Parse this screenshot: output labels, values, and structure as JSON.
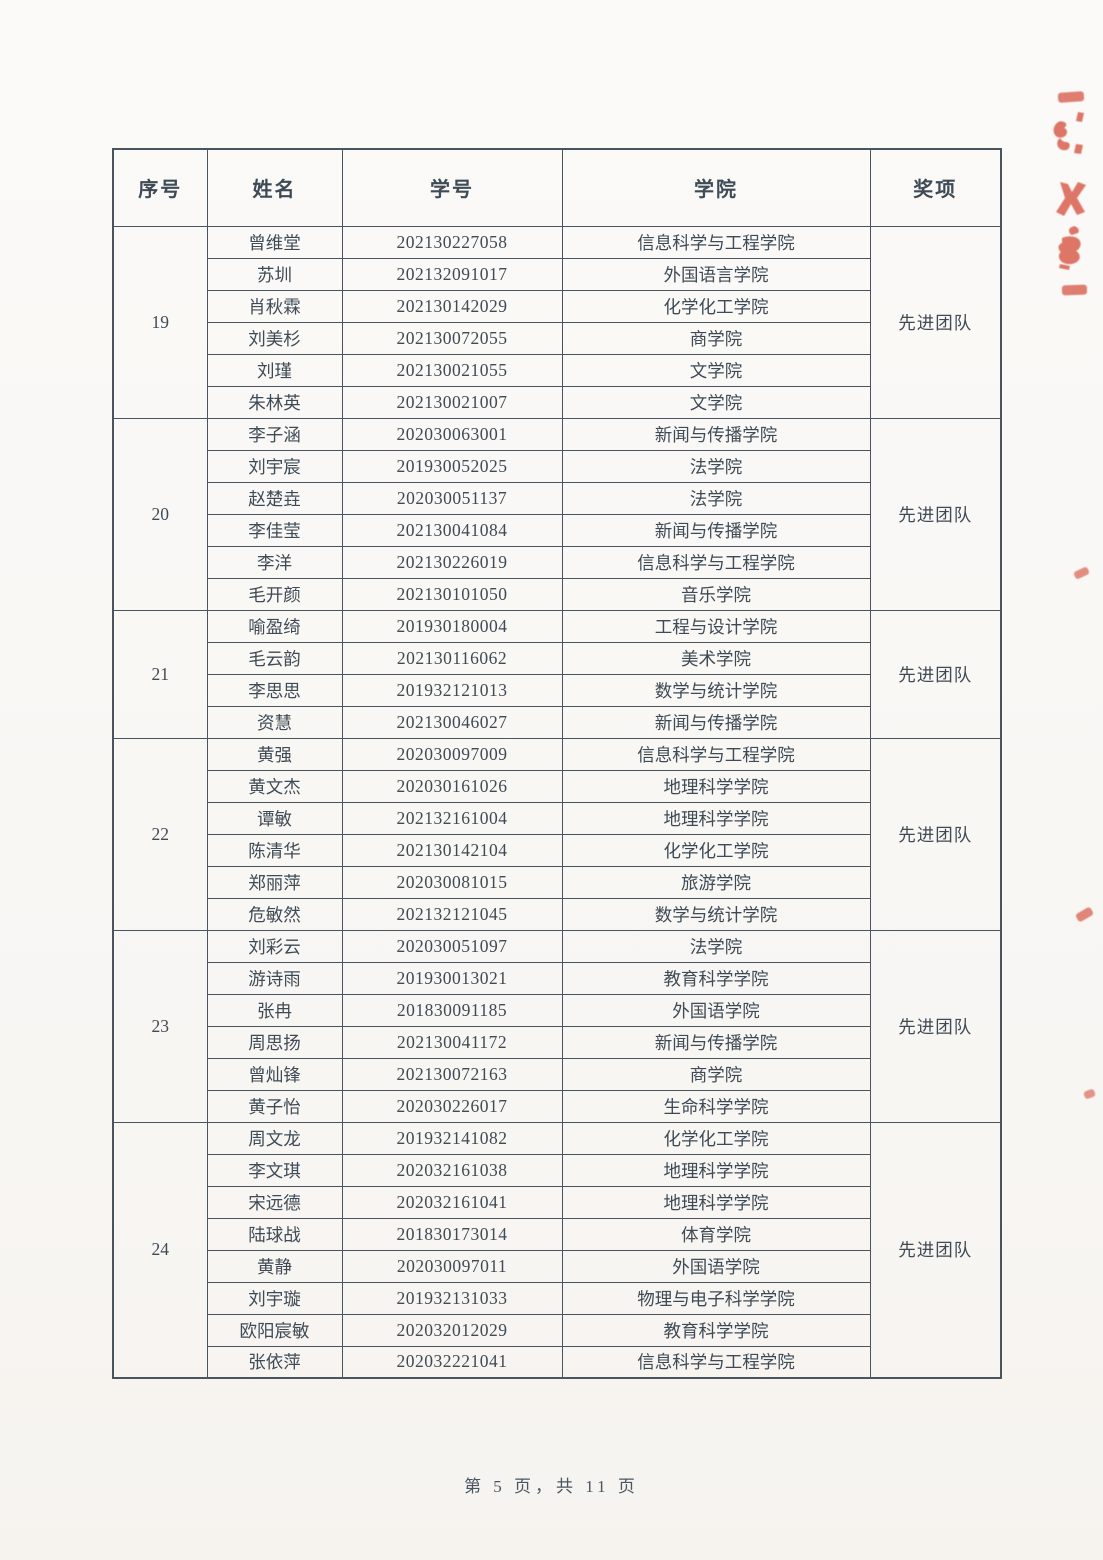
{
  "document": {
    "kind": "scanned award list page",
    "footer": {
      "page_text": "第 5 页，共 11 页"
    }
  },
  "colors": {
    "ink": "#3e4a55",
    "table_line": "#4a545e",
    "paper": "#f9f8f5",
    "stamp_red": "#d8604f"
  },
  "table": {
    "headers": [
      "序号",
      "姓名",
      "学号",
      "学院",
      "奖项"
    ],
    "groups": [
      {
        "id": "19",
        "award": "先进团队",
        "members": [
          {
            "name": "曾维堂",
            "student_id": "202130227058",
            "college": "信息科学与工程学院"
          },
          {
            "name": "苏圳",
            "student_id": "202132091017",
            "college": "外国语言学院"
          },
          {
            "name": "肖秋霖",
            "student_id": "202130142029",
            "college": "化学化工学院"
          },
          {
            "name": "刘美杉",
            "student_id": "202130072055",
            "college": "商学院"
          },
          {
            "name": "刘瑾",
            "student_id": "202130021055",
            "college": "文学院"
          },
          {
            "name": "朱林英",
            "student_id": "202130021007",
            "college": "文学院"
          }
        ]
      },
      {
        "id": "20",
        "award": "先进团队",
        "members": [
          {
            "name": "李子涵",
            "student_id": "202030063001",
            "college": "新闻与传播学院"
          },
          {
            "name": "刘宇宸",
            "student_id": "201930052025",
            "college": "法学院"
          },
          {
            "name": "赵楚垚",
            "student_id": "202030051137",
            "college": "法学院"
          },
          {
            "name": "李佳莹",
            "student_id": "202130041084",
            "college": "新闻与传播学院"
          },
          {
            "name": "李洋",
            "student_id": "202130226019",
            "college": "信息科学与工程学院"
          },
          {
            "name": "毛开颜",
            "student_id": "202130101050",
            "college": "音乐学院"
          }
        ]
      },
      {
        "id": "21",
        "award": "先进团队",
        "members": [
          {
            "name": "喻盈绮",
            "student_id": "201930180004",
            "college": "工程与设计学院"
          },
          {
            "name": "毛云韵",
            "student_id": "202130116062",
            "college": "美术学院"
          },
          {
            "name": "李思思",
            "student_id": "201932121013",
            "college": "数学与统计学院"
          },
          {
            "name": "资慧",
            "student_id": "202130046027",
            "college": "新闻与传播学院"
          }
        ]
      },
      {
        "id": "22",
        "award": "先进团队",
        "members": [
          {
            "name": "黄强",
            "student_id": "202030097009",
            "college": "信息科学与工程学院"
          },
          {
            "name": "黄文杰",
            "student_id": "202030161026",
            "college": "地理科学学院"
          },
          {
            "name": "谭敏",
            "student_id": "202132161004",
            "college": "地理科学学院"
          },
          {
            "name": "陈清华",
            "student_id": "202130142104",
            "college": "化学化工学院"
          },
          {
            "name": "郑丽萍",
            "student_id": "202030081015",
            "college": "旅游学院"
          },
          {
            "name": "危敏然",
            "student_id": "202132121045",
            "college": "数学与统计学院"
          }
        ]
      },
      {
        "id": "23",
        "award": "先进团队",
        "members": [
          {
            "name": "刘彩云",
            "student_id": "202030051097",
            "college": "法学院"
          },
          {
            "name": "游诗雨",
            "student_id": "201930013021",
            "college": "教育科学学院"
          },
          {
            "name": "张冉",
            "student_id": "201830091185",
            "college": "外国语学院"
          },
          {
            "name": "周思扬",
            "student_id": "202130041172",
            "college": "新闻与传播学院"
          },
          {
            "name": "曾灿锋",
            "student_id": "202130072163",
            "college": "商学院"
          },
          {
            "name": "黄子怡",
            "student_id": "202030226017",
            "college": "生命科学学院"
          }
        ]
      },
      {
        "id": "24",
        "award": "先进团队",
        "members": [
          {
            "name": "周文龙",
            "student_id": "201932141082",
            "college": "化学化工学院"
          },
          {
            "name": "李文琪",
            "student_id": "202032161038",
            "college": "地理科学学院"
          },
          {
            "name": "宋远德",
            "student_id": "202032161041",
            "college": "地理科学学院"
          },
          {
            "name": "陆球战",
            "student_id": "201830173014",
            "college": "体育学院"
          },
          {
            "name": "黄静",
            "student_id": "202030097011",
            "college": "外国语学院"
          },
          {
            "name": "刘宇璇",
            "student_id": "201932131033",
            "college": "物理与电子科学学院"
          },
          {
            "name": "欧阳宸敏",
            "student_id": "202032012029",
            "college": "教育科学学院"
          },
          {
            "name": "张依萍",
            "student_id": "202032221041",
            "college": "信息科学与工程学院"
          }
        ]
      }
    ]
  }
}
